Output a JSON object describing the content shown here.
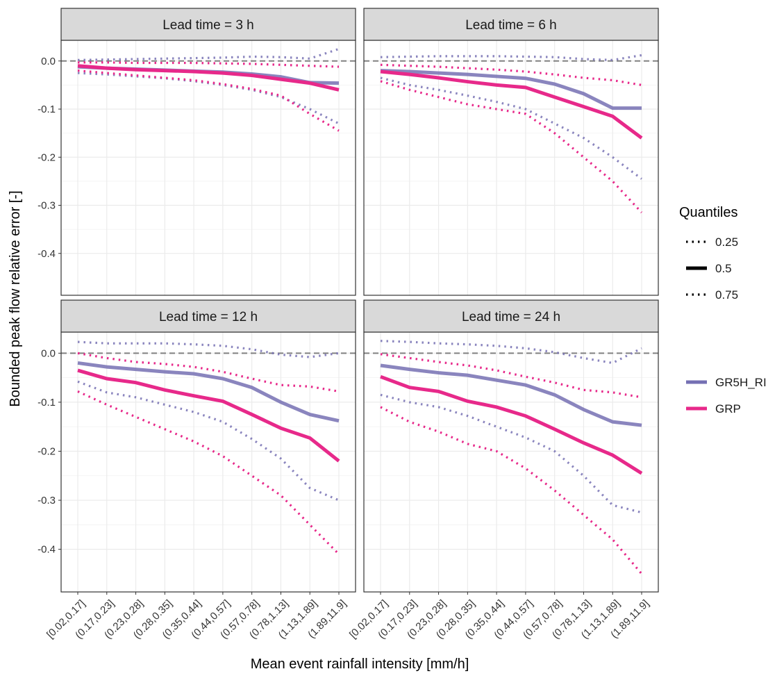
{
  "x_label": "Mean event rainfall intensity [mm/h]",
  "y_label": "Bounded peak flow relative error [-]",
  "legend": {
    "title": "Quantiles",
    "quantiles": [
      0.25,
      0.5,
      0.75
    ],
    "models": [
      {
        "name": "GR5H_RI",
        "color": "#7570b3"
      },
      {
        "name": "GRP",
        "color": "#e7298a"
      }
    ]
  },
  "chart_data": [
    {
      "type": "line",
      "title": "Lead time = 3 h",
      "ylim": [
        -0.487,
        0.043
      ],
      "yticks": [
        {
          "value": 0,
          "label": "0.0"
        },
        -0.1,
        -0.2,
        -0.3,
        -0.4
      ],
      "reference_line": 0,
      "series": [
        {
          "name": "GR5H_RI",
          "quantile": 0.75,
          "values": [
            0.002,
            0.003,
            0.004,
            0.005,
            0.006,
            0.007,
            0.009,
            0.008,
            0.005,
            0.025
          ]
        },
        {
          "name": "GR5H_RI",
          "quantile": 0.5,
          "values": [
            -0.012,
            -0.015,
            -0.017,
            -0.019,
            -0.021,
            -0.023,
            -0.027,
            -0.033,
            -0.045,
            -0.046
          ]
        },
        {
          "name": "GR5H_RI",
          "quantile": 0.25,
          "values": [
            -0.025,
            -0.028,
            -0.032,
            -0.036,
            -0.042,
            -0.05,
            -0.06,
            -0.075,
            -0.1,
            -0.13
          ]
        },
        {
          "name": "GRP",
          "quantile": 0.75,
          "values": [
            -0.003,
            -0.003,
            -0.004,
            -0.004,
            -0.004,
            -0.005,
            -0.006,
            -0.008,
            -0.01,
            -0.012
          ]
        },
        {
          "name": "GRP",
          "quantile": 0.5,
          "values": [
            -0.01,
            -0.015,
            -0.018,
            -0.02,
            -0.022,
            -0.025,
            -0.03,
            -0.038,
            -0.046,
            -0.06
          ]
        },
        {
          "name": "GRP",
          "quantile": 0.25,
          "values": [
            -0.02,
            -0.025,
            -0.03,
            -0.035,
            -0.04,
            -0.048,
            -0.058,
            -0.072,
            -0.11,
            -0.145
          ]
        }
      ]
    },
    {
      "type": "line",
      "title": "Lead time = 6 h",
      "ylim": [
        -0.487,
        0.043
      ],
      "yticks": [
        {
          "value": 0,
          "label": "0.0"
        },
        -0.1,
        -0.2,
        -0.3,
        -0.4
      ],
      "reference_line": 0,
      "series": [
        {
          "name": "GR5H_RI",
          "quantile": 0.75,
          "values": [
            0.008,
            0.009,
            0.01,
            0.01,
            0.01,
            0.009,
            0.008,
            0.004,
            0.002,
            0.012
          ]
        },
        {
          "name": "GR5H_RI",
          "quantile": 0.5,
          "values": [
            -0.02,
            -0.022,
            -0.025,
            -0.028,
            -0.032,
            -0.036,
            -0.048,
            -0.068,
            -0.098,
            -0.098
          ]
        },
        {
          "name": "GR5H_RI",
          "quantile": 0.25,
          "values": [
            -0.035,
            -0.05,
            -0.06,
            -0.072,
            -0.085,
            -0.1,
            -0.13,
            -0.16,
            -0.2,
            -0.245
          ]
        },
        {
          "name": "GRP",
          "quantile": 0.75,
          "values": [
            -0.008,
            -0.01,
            -0.012,
            -0.015,
            -0.018,
            -0.022,
            -0.028,
            -0.035,
            -0.04,
            -0.05
          ]
        },
        {
          "name": "GRP",
          "quantile": 0.5,
          "values": [
            -0.022,
            -0.028,
            -0.035,
            -0.043,
            -0.05,
            -0.055,
            -0.075,
            -0.095,
            -0.115,
            -0.16
          ]
        },
        {
          "name": "GRP",
          "quantile": 0.25,
          "values": [
            -0.042,
            -0.06,
            -0.075,
            -0.09,
            -0.1,
            -0.11,
            -0.15,
            -0.2,
            -0.25,
            -0.315
          ]
        }
      ]
    },
    {
      "type": "line",
      "title": "Lead time = 12 h",
      "ylim": [
        -0.487,
        0.043
      ],
      "yticks": [
        {
          "value": 0,
          "label": "0.0"
        },
        -0.1,
        -0.2,
        -0.3,
        -0.4
      ],
      "reference_line": 0,
      "categories": [
        "[0.02,0.17]",
        "(0.17,0.23]",
        "(0.23,0.28]",
        "(0.28,0.35]",
        "(0.35,0.44]",
        "(0.44,0.57]",
        "(0.57,0.78]",
        "(0.78,1.13]",
        "(1.13,1.89]",
        "(1.89,11.9]"
      ],
      "series": [
        {
          "name": "GR5H_RI",
          "quantile": 0.75,
          "values": [
            0.023,
            0.02,
            0.02,
            0.02,
            0.018,
            0.015,
            0.008,
            -0.003,
            -0.008,
            0
          ]
        },
        {
          "name": "GR5H_RI",
          "quantile": 0.5,
          "values": [
            -0.02,
            -0.028,
            -0.033,
            -0.038,
            -0.042,
            -0.052,
            -0.07,
            -0.1,
            -0.125,
            -0.138
          ]
        },
        {
          "name": "GR5H_RI",
          "quantile": 0.25,
          "values": [
            -0.058,
            -0.08,
            -0.09,
            -0.105,
            -0.12,
            -0.14,
            -0.175,
            -0.215,
            -0.275,
            -0.3
          ]
        },
        {
          "name": "GRP",
          "quantile": 0.75,
          "values": [
            0,
            -0.01,
            -0.018,
            -0.022,
            -0.028,
            -0.038,
            -0.052,
            -0.065,
            -0.068,
            -0.078
          ]
        },
        {
          "name": "GRP",
          "quantile": 0.5,
          "values": [
            -0.035,
            -0.052,
            -0.06,
            -0.075,
            -0.087,
            -0.098,
            -0.125,
            -0.153,
            -0.173,
            -0.22
          ]
        },
        {
          "name": "GRP",
          "quantile": 0.25,
          "values": [
            -0.078,
            -0.105,
            -0.13,
            -0.155,
            -0.18,
            -0.21,
            -0.25,
            -0.29,
            -0.35,
            -0.41
          ]
        }
      ]
    },
    {
      "type": "line",
      "title": "Lead time = 24 h",
      "ylim": [
        -0.487,
        0.043
      ],
      "yticks": [
        {
          "value": 0,
          "label": "0.0"
        },
        -0.1,
        -0.2,
        -0.3,
        -0.4
      ],
      "reference_line": 0,
      "categories": [
        "[0.02,0.17]",
        "(0.17,0.23]",
        "(0.23,0.28]",
        "(0.28,0.35]",
        "(0.35,0.44]",
        "(0.44,0.57]",
        "(0.57,0.78]",
        "(0.78,1.13]",
        "(1.13,1.89]",
        "(1.89,11.9]"
      ],
      "series": [
        {
          "name": "GR5H_RI",
          "quantile": 0.75,
          "values": [
            0.025,
            0.023,
            0.02,
            0.018,
            0.015,
            0.01,
            0.002,
            -0.01,
            -0.02,
            0.01
          ]
        },
        {
          "name": "GR5H_RI",
          "quantile": 0.5,
          "values": [
            -0.025,
            -0.033,
            -0.04,
            -0.045,
            -0.055,
            -0.065,
            -0.085,
            -0.115,
            -0.14,
            -0.147
          ]
        },
        {
          "name": "GR5H_RI",
          "quantile": 0.25,
          "values": [
            -0.085,
            -0.1,
            -0.11,
            -0.128,
            -0.15,
            -0.172,
            -0.2,
            -0.25,
            -0.31,
            -0.325
          ]
        },
        {
          "name": "GRP",
          "quantile": 0.75,
          "values": [
            -0.002,
            -0.01,
            -0.018,
            -0.025,
            -0.035,
            -0.048,
            -0.06,
            -0.075,
            -0.08,
            -0.09
          ]
        },
        {
          "name": "GRP",
          "quantile": 0.5,
          "values": [
            -0.048,
            -0.07,
            -0.078,
            -0.098,
            -0.11,
            -0.128,
            -0.155,
            -0.183,
            -0.208,
            -0.245
          ]
        },
        {
          "name": "GRP",
          "quantile": 0.25,
          "values": [
            -0.11,
            -0.14,
            -0.16,
            -0.185,
            -0.2,
            -0.235,
            -0.28,
            -0.33,
            -0.38,
            -0.45
          ]
        }
      ]
    }
  ]
}
